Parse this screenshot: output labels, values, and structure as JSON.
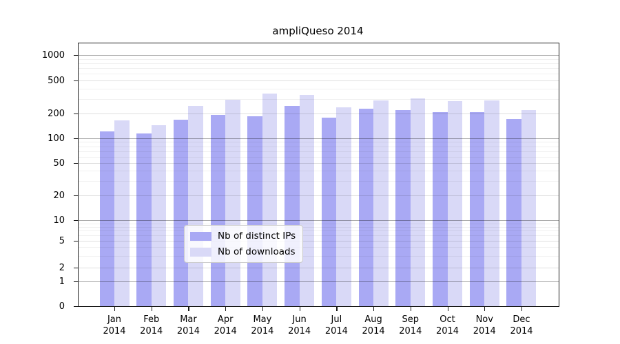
{
  "title": "ampliQueso 2014",
  "legend": {
    "items": [
      {
        "label": "Nb of distinct IPs",
        "color": "#a9a9f4"
      },
      {
        "label": "Nb of downloads",
        "color": "#d9d9f7"
      }
    ]
  },
  "chart_data": {
    "type": "bar",
    "title": "ampliQueso 2014",
    "categories": [
      "Jan",
      "Feb",
      "Mar",
      "Apr",
      "May",
      "Jun",
      "Jul",
      "Aug",
      "Sep",
      "Oct",
      "Nov",
      "Dec"
    ],
    "category_year": "2014",
    "series": [
      {
        "name": "Nb of distinct IPs",
        "color": "#a9a9f4",
        "values": [
          121,
          115,
          168,
          194,
          187,
          246,
          179,
          228,
          222,
          208,
          206,
          170
        ]
      },
      {
        "name": "Nb of downloads",
        "color": "#d9d9f7",
        "values": [
          164,
          144,
          246,
          292,
          350,
          332,
          237,
          287,
          304,
          284,
          286,
          220
        ]
      }
    ],
    "xlabel": "",
    "ylabel": "",
    "yscale": "symlog",
    "yticks": [
      0,
      1,
      2,
      5,
      10,
      20,
      50,
      100,
      200,
      500,
      1000
    ],
    "ylim": [
      0,
      1400
    ],
    "grid": true,
    "legend_position": "inside-bottom-center"
  }
}
